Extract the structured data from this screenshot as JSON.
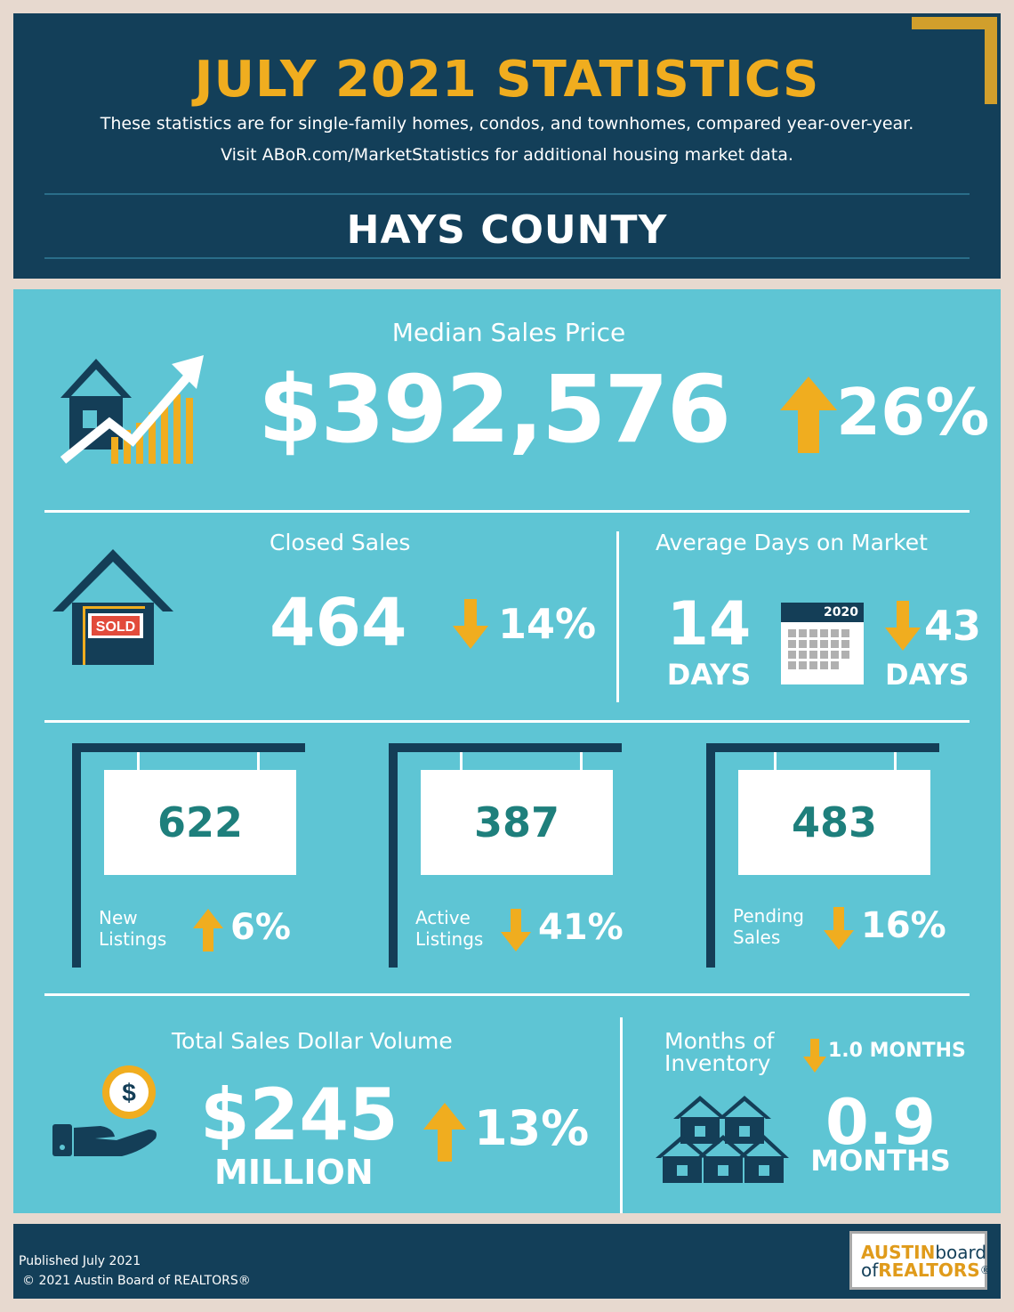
{
  "header": {
    "title": "JULY 2021 STATISTICS",
    "subtitle_line1": "These statistics are for single-family homes, condos, and townhomes, compared year-over-year.",
    "subtitle_line2": "Visit ABoR.com/MarketStatistics for additional housing market data.",
    "county": "HAYS COUNTY"
  },
  "median_sales_price": {
    "label": "Median Sales Price",
    "value": "$392,576",
    "change": "26%",
    "direction": "up"
  },
  "closed_sales": {
    "label": "Closed Sales",
    "value": "464",
    "change": "14%",
    "direction": "down",
    "sign_text": "SOLD"
  },
  "days_on_market": {
    "label": "Average Days on Market",
    "value": "14",
    "unit": "DAYS",
    "calendar_year": "2020",
    "change": "43",
    "change_unit": "DAYS",
    "direction": "down"
  },
  "signs": [
    {
      "value": "622",
      "label_line1": "New",
      "label_line2": "Listings",
      "change": "6%",
      "direction": "up"
    },
    {
      "value": "387",
      "label_line1": "Active",
      "label_line2": "Listings",
      "change": "41%",
      "direction": "down"
    },
    {
      "value": "483",
      "label_line1": "Pending",
      "label_line2": "Sales",
      "change": "16%",
      "direction": "down"
    }
  ],
  "total_volume": {
    "label": "Total Sales Dollar Volume",
    "value": "$245",
    "unit": "MILLION",
    "change": "13%",
    "direction": "up",
    "coin_symbol": "$"
  },
  "months_inventory": {
    "label_line1": "Months of",
    "label_line2": "Inventory",
    "change": "1.0 MONTHS",
    "direction": "down",
    "value": "0.9",
    "unit": "MONTHS"
  },
  "footer": {
    "published": "Published July 2021",
    "copyright": "© 2021 Austin Board of REALTORS®",
    "logo_austin": "AUSTIN",
    "logo_board": "board",
    "logo_of": "of",
    "logo_realtors": "REALTORS",
    "logo_reg": "®"
  },
  "colors": {
    "navy": "#133f59",
    "gold": "#f0ad1f",
    "teal_panel": "#5ec5d4",
    "teal_text": "#1e7f7c",
    "background": "#e7d9cf"
  }
}
